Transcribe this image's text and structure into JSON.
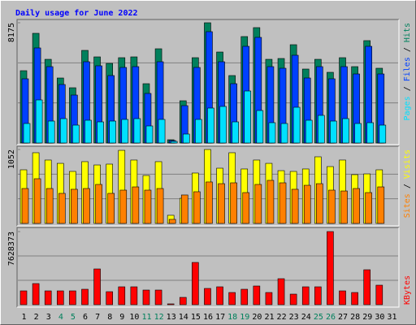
{
  "chart_data": {
    "type": "bar",
    "title": "Daily usage for June 2022",
    "title_color": "#0000ff",
    "separator": " / ",
    "categories": [
      "1",
      "2",
      "3",
      "4",
      "5",
      "6",
      "7",
      "8",
      "9",
      "10",
      "11",
      "12",
      "13",
      "14",
      "15",
      "16",
      "17",
      "18",
      "19",
      "20",
      "21",
      "22",
      "23",
      "24",
      "25",
      "26",
      "27",
      "28",
      "29",
      "30",
      "31"
    ],
    "category_colors": [
      "#000000",
      "#000000",
      "#000000",
      "#00805c",
      "#00805c",
      "#000000",
      "#000000",
      "#000000",
      "#000000",
      "#000000",
      "#00805c",
      "#00805c",
      "#000000",
      "#000000",
      "#000000",
      "#000000",
      "#000000",
      "#00805c",
      "#00805c",
      "#000000",
      "#000000",
      "#000000",
      "#000000",
      "#000000",
      "#00805c",
      "#00805c",
      "#000000",
      "#000000",
      "#000000",
      "#000000",
      "#000000"
    ],
    "panels": [
      {
        "ylim": [
          0,
          8175
        ],
        "yticks": [
          8175
        ],
        "series": [
          {
            "name": "Hits",
            "color": "#00805c",
            "values": [
              4916,
              7457,
              5689,
              4419,
              3756,
              6297,
              5855,
              5413,
              5800,
              5855,
              4032,
              6407,
              221,
              2872,
              5800,
              8175,
              6186,
              4585,
              7236,
              7844,
              5689,
              5745,
              6683,
              5027,
              5689,
              4806,
              5800,
              5192,
              6960,
              5082,
              0
            ]
          },
          {
            "name": "Files",
            "color": "#0040ff",
            "values": [
              4364,
              6463,
              5192,
              3977,
              3259,
              5524,
              5248,
              4585,
              5137,
              5192,
              3370,
              5524,
              166,
              2541,
              5137,
              7568,
              5524,
              4032,
              6573,
              7181,
              5192,
              5082,
              5966,
              4419,
              5192,
              4364,
              5192,
              4695,
              6573,
              4695,
              0
            ]
          },
          {
            "name": "Pages",
            "color": "#00e0ff",
            "values": [
              1326,
              2928,
              1491,
              1657,
              1215,
              1547,
              1436,
              1491,
              1602,
              1657,
              1160,
              1602,
              110,
              608,
              1602,
              2375,
              2486,
              1436,
              3535,
              2209,
              1381,
              1326,
              2430,
              1547,
              1878,
              1491,
              1657,
              1326,
              1381,
              1215,
              0
            ]
          }
        ]
      },
      {
        "ylim": [
          0,
          1052
        ],
        "yticks": [
          1052
        ],
        "series": [
          {
            "name": "Visits",
            "color": "#ffff00",
            "values": [
              763,
              1006,
              902,
              855,
              740,
              879,
              832,
              844,
              1040,
              902,
              682,
              879,
              116,
              358,
              717,
              1052,
              786,
              1006,
              775,
              902,
              855,
              751,
              740,
              775,
              948,
              809,
              902,
              694,
              705,
              763,
              0
            ]
          },
          {
            "name": "Sites",
            "color": "#ff8000",
            "values": [
              497,
              636,
              497,
              428,
              486,
              497,
              555,
              428,
              474,
              520,
              474,
              497,
              58,
              405,
              451,
              590,
              566,
              578,
              439,
              555,
              613,
              578,
              486,
              543,
              566,
              474,
              462,
              497,
              439,
              520,
              0
            ]
          }
        ]
      },
      {
        "ylim": [
          0,
          7628373
        ],
        "yticks": [
          7628373
        ],
        "series": [
          {
            "name": "KBytes",
            "color": "#ff0000",
            "values": [
              1440915,
              2203752,
              1440915,
              1440915,
              1440915,
              1610434,
              3729427,
              1356155,
              1864713,
              1864713,
              1525675,
              1525675,
              84760,
              762837,
              4407615,
              1695194,
              1864713,
              1271396,
              1610434,
              1949473,
              1271396,
              2712310,
              1101876,
              1864713,
              1864713,
              7628373,
              1440915,
              1271396,
              3644667,
              2034232,
              0
            ]
          }
        ]
      }
    ]
  }
}
